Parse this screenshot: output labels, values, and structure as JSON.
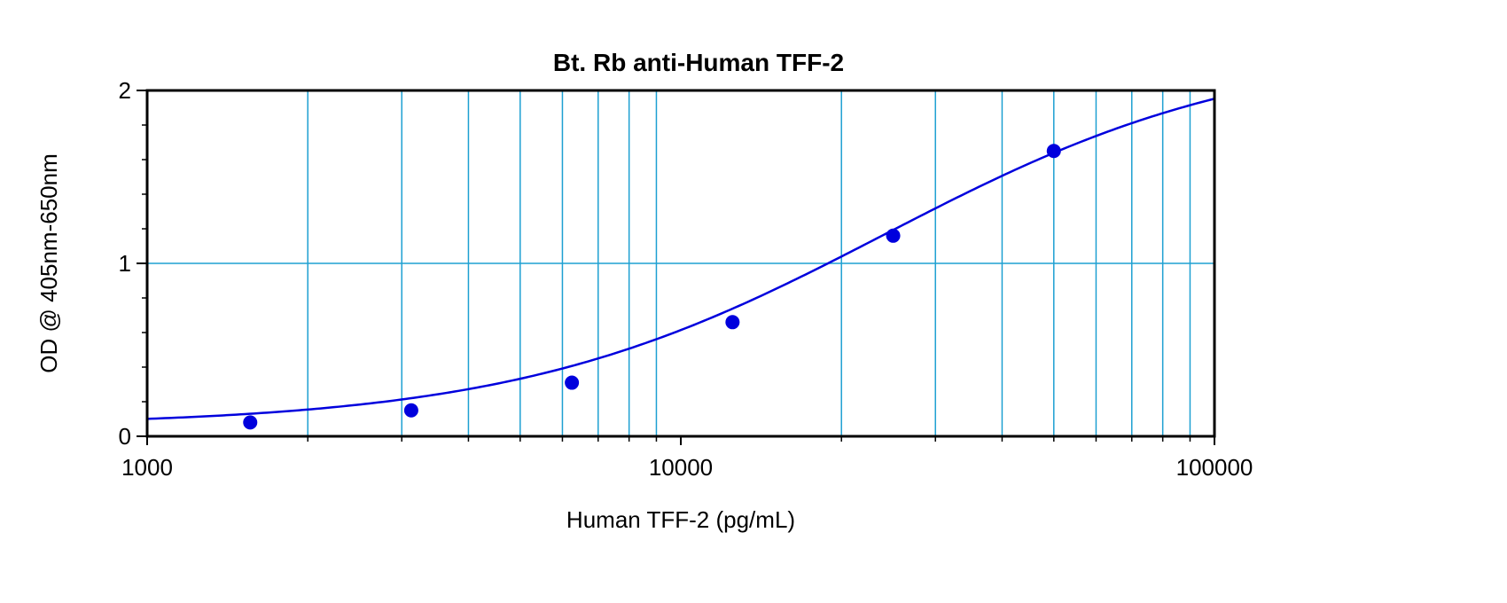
{
  "chart_data": {
    "type": "scatter",
    "title": "Bt. Rb anti-Human TFF-2",
    "xlabel": "Human TFF-2 (pg/mL)",
    "ylabel": "OD @ 405nm-650nm",
    "xscale": "log",
    "xlim": [
      1000,
      100000
    ],
    "ylim": [
      0,
      2
    ],
    "x_tick_labels": [
      "1000",
      "10000",
      "100000"
    ],
    "y_tick_labels": [
      "0",
      "1",
      "2"
    ],
    "grid": true,
    "points": [
      {
        "x": 1560,
        "y": 0.08
      },
      {
        "x": 3125,
        "y": 0.15
      },
      {
        "x": 6250,
        "y": 0.31
      },
      {
        "x": 12500,
        "y": 0.66
      },
      {
        "x": 25000,
        "y": 1.16
      },
      {
        "x": 50000,
        "y": 1.65
      }
    ],
    "fit_curve": {
      "model": "4PL",
      "A": 0.06,
      "D": 2.27,
      "C": 24000,
      "B": 1.25
    },
    "colors": {
      "data": "#0000dd",
      "grid": "#1ea0d2",
      "axis": "#000000"
    }
  }
}
